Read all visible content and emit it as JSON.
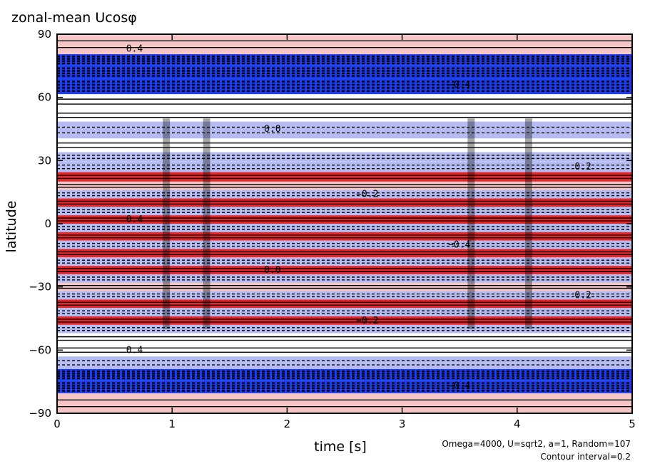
{
  "chart_data": {
    "type": "heatmap",
    "title": "zonal-mean Ucosφ",
    "xlabel": "time [s]",
    "ylabel": "latitude",
    "xlim": [
      0,
      5
    ],
    "ylim": [
      -90,
      90
    ],
    "x_ticks": [
      "0",
      "1",
      "2",
      "3",
      "4",
      "5"
    ],
    "y_ticks": [
      "90",
      "60",
      "30",
      "0",
      "−30",
      "−60",
      "−90"
    ],
    "annotation_lines": [
      "Omega=4000, U=sqrt2, a=1, Random=107",
      "Contour interval=0.2"
    ],
    "contour_labels": [
      "0.4",
      "0.0",
      "−0.2",
      "−0.4",
      "0.2"
    ],
    "colors": {
      "positive": "#e8262a",
      "positive_light": "#f6c6c6",
      "negative": "#1a3cf0",
      "negative_light": "#b4bcf2",
      "contour": "#000000"
    },
    "bands": [
      {
        "lat": 83,
        "value": 0.4
      },
      {
        "lat": 78,
        "value": -1.6
      },
      {
        "lat": 72,
        "value": -1.0
      },
      {
        "lat": 66,
        "value": -1.4
      },
      {
        "lat": 57,
        "value": 0.0
      },
      {
        "lat": 52,
        "value": 0.2
      },
      {
        "lat": 45,
        "value": -0.4
      },
      {
        "lat": 36,
        "value": 0.0
      },
      {
        "lat": 32,
        "value": -0.4
      },
      {
        "lat": 27,
        "value": -0.6
      },
      {
        "lat": 22,
        "value": 0.6
      },
      {
        "lat": 18,
        "value": 0.4
      },
      {
        "lat": 14,
        "value": -0.4
      },
      {
        "lat": 10,
        "value": 0.6
      },
      {
        "lat": 6,
        "value": -0.6
      },
      {
        "lat": 2,
        "value": 0.8
      },
      {
        "lat": -2,
        "value": -0.8
      },
      {
        "lat": -6,
        "value": 0.8
      },
      {
        "lat": -10,
        "value": -0.6
      },
      {
        "lat": -14,
        "value": 0.6
      },
      {
        "lat": -18,
        "value": -0.6
      },
      {
        "lat": -22,
        "value": 0.6
      },
      {
        "lat": -26,
        "value": -0.6
      },
      {
        "lat": -30,
        "value": 0.4
      },
      {
        "lat": -34,
        "value": -0.4
      },
      {
        "lat": -38,
        "value": 0.6
      },
      {
        "lat": -42,
        "value": -0.6
      },
      {
        "lat": -46,
        "value": 0.6
      },
      {
        "lat": -50,
        "value": -0.4
      },
      {
        "lat": -54,
        "value": 0.2
      },
      {
        "lat": -60,
        "value": 0.0
      },
      {
        "lat": -66,
        "value": -0.4
      },
      {
        "lat": -72,
        "value": -1.6
      },
      {
        "lat": -77,
        "value": -1.2
      },
      {
        "lat": -84,
        "value": 0.4
      }
    ]
  }
}
